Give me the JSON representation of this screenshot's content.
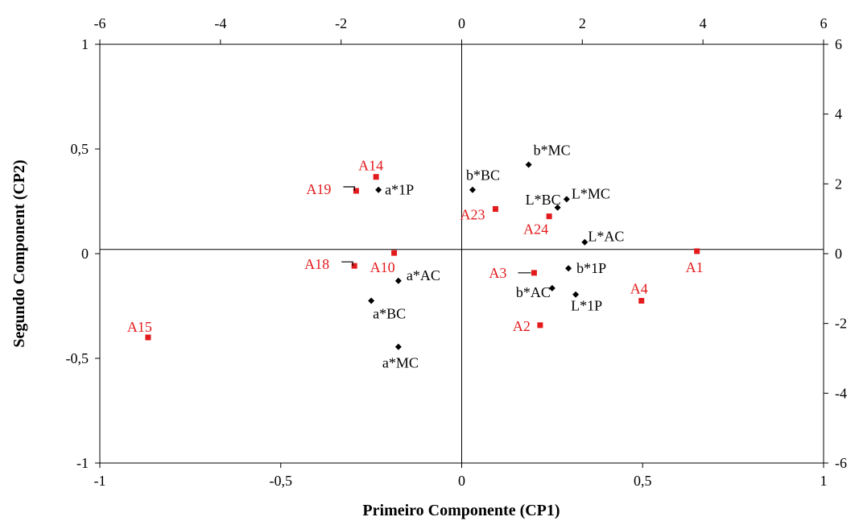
{
  "chart_data": {
    "type": "scatter",
    "xlabel": "Primeiro Componente (CP1)",
    "ylabel": "Segundo Component (CP2)",
    "primary_axes": {
      "xlim": [
        -1,
        1
      ],
      "ylim": [
        -1,
        1
      ],
      "xticks": [
        "-1",
        "-0,5",
        "0",
        "0,5",
        "1"
      ],
      "yticks": [
        "-1",
        "-0,5",
        "0",
        "0,5",
        "1"
      ]
    },
    "secondary_axes": {
      "xlim": [
        -6,
        6
      ],
      "ylim": [
        -6,
        6
      ],
      "xticks": [
        "-6",
        "-4",
        "-2",
        "0",
        "2",
        "4",
        "6"
      ],
      "yticks": [
        "-6",
        "-4",
        "-2",
        "0",
        "2",
        "4",
        "6"
      ]
    },
    "reference_line_y": 0.02,
    "reference_line_x": 0,
    "grid": false,
    "series": [
      {
        "color": "#000000",
        "marker": "diamond",
        "axes": "primary",
        "points": [
          {
            "label": "b*MC",
            "x": 0.185,
            "y": 0.425
          },
          {
            "label": "b*BC",
            "x": 0.03,
            "y": 0.305
          },
          {
            "label": "a*1P",
            "x": -0.23,
            "y": 0.305
          },
          {
            "label": "L*MC",
            "x": 0.29,
            "y": 0.26
          },
          {
            "label": "L*BC",
            "x": 0.265,
            "y": 0.22
          },
          {
            "label": "L*AC",
            "x": 0.34,
            "y": 0.055
          },
          {
            "label": "b*1P",
            "x": 0.295,
            "y": -0.07
          },
          {
            "label": "a*AC",
            "x": -0.175,
            "y": -0.13
          },
          {
            "label": "b*AC",
            "x": 0.25,
            "y": -0.165
          },
          {
            "label": "L*1P",
            "x": 0.315,
            "y": -0.195
          },
          {
            "label": "a*BC",
            "x": -0.25,
            "y": -0.225
          },
          {
            "label": "a*MC",
            "x": -0.175,
            "y": -0.445
          }
        ]
      },
      {
        "color": "#e31a1c",
        "marker": "square",
        "axes": "secondary",
        "points": [
          {
            "label": "A14",
            "x": -1.42,
            "y": 2.2
          },
          {
            "label": "A19",
            "x": -1.75,
            "y": 1.8
          },
          {
            "label": "A23",
            "x": 0.56,
            "y": 1.28
          },
          {
            "label": "A24",
            "x": 1.45,
            "y": 1.07
          },
          {
            "label": "A1",
            "x": 3.9,
            "y": 0.07
          },
          {
            "label": "A10",
            "x": -1.12,
            "y": 0.02
          },
          {
            "label": "A18",
            "x": -1.78,
            "y": -0.35
          },
          {
            "label": "A3",
            "x": 1.2,
            "y": -0.55
          },
          {
            "label": "A4",
            "x": 2.98,
            "y": -1.35
          },
          {
            "label": "A2",
            "x": 1.3,
            "y": -2.05
          },
          {
            "label": "A15",
            "x": -5.2,
            "y": -2.4
          }
        ]
      }
    ]
  },
  "colors": {
    "variables": "#000000",
    "samples": "#e31a1c",
    "axes": "#000000"
  }
}
